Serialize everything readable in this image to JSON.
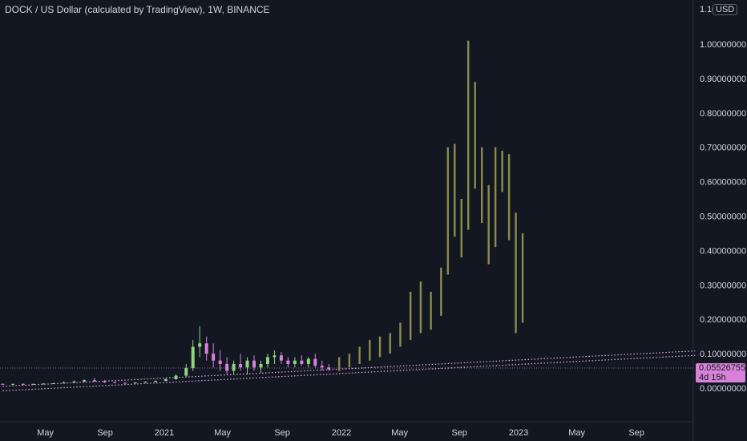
{
  "header": {
    "title": "DOCK / US Dollar (calculated by TradingView), 1W, BINANCE",
    "currency": "USD",
    "top_tick_partial": "1.10"
  },
  "price_tag": {
    "value": "0.05526755",
    "countdown": "4d 15h"
  },
  "colors": {
    "background": "#131722",
    "axis_text": "#d1d4dc",
    "bars_projection": "#8c8c4a",
    "candle_up": "#8fd47a",
    "candle_down": "#d782d8",
    "trendline": "#e4a8e6",
    "price_tag_bg": "#d782d8"
  },
  "chart_data": {
    "type": "candlestick",
    "title": "DOCK / US Dollar (calculated by TradingView), 1W, BINANCE",
    "y_axis": {
      "unit": "USD",
      "ylim": [
        -0.05,
        1.1
      ],
      "ticks": [
        "1.00000000",
        "0.90000000",
        "0.80000000",
        "0.70000000",
        "0.60000000",
        "0.50000000",
        "0.40000000",
        "0.30000000",
        "0.20000000",
        "0.10000000",
        "0.00000000"
      ],
      "tick_values": [
        1.0,
        0.9,
        0.8,
        0.7,
        0.6,
        0.5,
        0.4,
        0.3,
        0.2,
        0.1,
        0.0
      ]
    },
    "x_axis": {
      "ticks": [
        {
          "label": "May",
          "date": "2020-05"
        },
        {
          "label": "Sep",
          "date": "2020-09"
        },
        {
          "label": "2021",
          "date": "2021-01"
        },
        {
          "label": "May",
          "date": "2021-05"
        },
        {
          "label": "Sep",
          "date": "2021-09"
        },
        {
          "label": "2022",
          "date": "2022-01"
        },
        {
          "label": "May",
          "date": "2022-05"
        },
        {
          "label": "Sep",
          "date": "2022-09"
        },
        {
          "label": "2023",
          "date": "2023-01"
        },
        {
          "label": "May",
          "date": "2023-05"
        },
        {
          "label": "Sep",
          "date": "2023-09"
        }
      ]
    },
    "current_price": 0.05526755,
    "projection_bars": [
      {
        "date": "2021-12-27",
        "low": 0.05,
        "high": 0.09
      },
      {
        "date": "2022-01-17",
        "low": 0.06,
        "high": 0.1
      },
      {
        "date": "2022-02-07",
        "low": 0.07,
        "high": 0.12
      },
      {
        "date": "2022-02-28",
        "low": 0.08,
        "high": 0.14
      },
      {
        "date": "2022-03-21",
        "low": 0.09,
        "high": 0.15
      },
      {
        "date": "2022-04-11",
        "low": 0.1,
        "high": 0.16
      },
      {
        "date": "2022-05-02",
        "low": 0.12,
        "high": 0.19
      },
      {
        "date": "2022-05-23",
        "low": 0.14,
        "high": 0.28
      },
      {
        "date": "2022-06-13",
        "low": 0.16,
        "high": 0.31
      },
      {
        "date": "2022-07-04",
        "low": 0.17,
        "high": 0.28
      },
      {
        "date": "2022-07-25",
        "low": 0.21,
        "high": 0.35
      },
      {
        "date": "2022-08-08",
        "low": 0.33,
        "high": 0.7
      },
      {
        "date": "2022-08-22",
        "low": 0.44,
        "high": 0.71
      },
      {
        "date": "2022-09-05",
        "low": 0.38,
        "high": 0.55
      },
      {
        "date": "2022-09-19",
        "low": 0.46,
        "high": 1.01
      },
      {
        "date": "2022-10-03",
        "low": 0.58,
        "high": 0.89
      },
      {
        "date": "2022-10-17",
        "low": 0.48,
        "high": 0.7
      },
      {
        "date": "2022-10-31",
        "low": 0.36,
        "high": 0.59
      },
      {
        "date": "2022-11-14",
        "low": 0.41,
        "high": 0.7
      },
      {
        "date": "2022-11-28",
        "low": 0.57,
        "high": 0.69
      },
      {
        "date": "2022-12-12",
        "low": 0.43,
        "high": 0.68
      },
      {
        "date": "2022-12-26",
        "low": 0.16,
        "high": 0.51
      },
      {
        "date": "2023-01-09",
        "low": 0.19,
        "high": 0.45
      }
    ],
    "candles": [
      {
        "date": "2020-02-03",
        "open": 0.012,
        "high": 0.014,
        "low": 0.01,
        "close": 0.011
      },
      {
        "date": "2020-02-24",
        "open": 0.011,
        "high": 0.013,
        "low": 0.009,
        "close": 0.012
      },
      {
        "date": "2020-03-16",
        "open": 0.012,
        "high": 0.014,
        "low": 0.01,
        "close": 0.011
      },
      {
        "date": "2020-04-06",
        "open": 0.011,
        "high": 0.013,
        "low": 0.01,
        "close": 0.012
      },
      {
        "date": "2020-04-27",
        "open": 0.012,
        "high": 0.014,
        "low": 0.011,
        "close": 0.013
      },
      {
        "date": "2020-05-18",
        "open": 0.013,
        "high": 0.016,
        "low": 0.012,
        "close": 0.014
      },
      {
        "date": "2020-06-08",
        "open": 0.014,
        "high": 0.02,
        "low": 0.013,
        "close": 0.016
      },
      {
        "date": "2020-06-29",
        "open": 0.016,
        "high": 0.022,
        "low": 0.015,
        "close": 0.019
      },
      {
        "date": "2020-07-20",
        "open": 0.019,
        "high": 0.025,
        "low": 0.017,
        "close": 0.023
      },
      {
        "date": "2020-08-10",
        "open": 0.023,
        "high": 0.03,
        "low": 0.018,
        "close": 0.02
      },
      {
        "date": "2020-08-31",
        "open": 0.02,
        "high": 0.023,
        "low": 0.015,
        "close": 0.017
      },
      {
        "date": "2020-09-21",
        "open": 0.017,
        "high": 0.019,
        "low": 0.014,
        "close": 0.015
      },
      {
        "date": "2020-10-12",
        "open": 0.015,
        "high": 0.017,
        "low": 0.013,
        "close": 0.014
      },
      {
        "date": "2020-11-02",
        "open": 0.014,
        "high": 0.017,
        "low": 0.013,
        "close": 0.016
      },
      {
        "date": "2020-11-23",
        "open": 0.016,
        "high": 0.02,
        "low": 0.015,
        "close": 0.018
      },
      {
        "date": "2020-12-14",
        "open": 0.018,
        "high": 0.022,
        "low": 0.017,
        "close": 0.021
      },
      {
        "date": "2021-01-04",
        "open": 0.021,
        "high": 0.028,
        "low": 0.02,
        "close": 0.026
      },
      {
        "date": "2021-01-25",
        "open": 0.026,
        "high": 0.04,
        "low": 0.024,
        "close": 0.036
      },
      {
        "date": "2021-02-15",
        "open": 0.036,
        "high": 0.07,
        "low": 0.033,
        "close": 0.058
      },
      {
        "date": "2021-03-01",
        "open": 0.058,
        "high": 0.14,
        "low": 0.05,
        "close": 0.12
      },
      {
        "date": "2021-03-15",
        "open": 0.12,
        "high": 0.18,
        "low": 0.09,
        "close": 0.13
      },
      {
        "date": "2021-03-29",
        "open": 0.13,
        "high": 0.15,
        "low": 0.08,
        "close": 0.1
      },
      {
        "date": "2021-04-12",
        "open": 0.1,
        "high": 0.13,
        "low": 0.06,
        "close": 0.08
      },
      {
        "date": "2021-04-26",
        "open": 0.08,
        "high": 0.11,
        "low": 0.05,
        "close": 0.07
      },
      {
        "date": "2021-05-10",
        "open": 0.07,
        "high": 0.09,
        "low": 0.04,
        "close": 0.05
      },
      {
        "date": "2021-05-24",
        "open": 0.05,
        "high": 0.08,
        "low": 0.04,
        "close": 0.07
      },
      {
        "date": "2021-06-07",
        "open": 0.07,
        "high": 0.1,
        "low": 0.05,
        "close": 0.06
      },
      {
        "date": "2021-06-21",
        "open": 0.06,
        "high": 0.09,
        "low": 0.04,
        "close": 0.08
      },
      {
        "date": "2021-07-05",
        "open": 0.08,
        "high": 0.095,
        "low": 0.05,
        "close": 0.06
      },
      {
        "date": "2021-07-19",
        "open": 0.06,
        "high": 0.08,
        "low": 0.045,
        "close": 0.07
      },
      {
        "date": "2021-08-02",
        "open": 0.07,
        "high": 0.1,
        "low": 0.06,
        "close": 0.09
      },
      {
        "date": "2021-08-16",
        "open": 0.09,
        "high": 0.11,
        "low": 0.07,
        "close": 0.095
      },
      {
        "date": "2021-08-30",
        "open": 0.095,
        "high": 0.105,
        "low": 0.07,
        "close": 0.08
      },
      {
        "date": "2021-09-13",
        "open": 0.08,
        "high": 0.09,
        "low": 0.06,
        "close": 0.07
      },
      {
        "date": "2021-09-27",
        "open": 0.07,
        "high": 0.09,
        "low": 0.06,
        "close": 0.08
      },
      {
        "date": "2021-10-11",
        "open": 0.08,
        "high": 0.095,
        "low": 0.065,
        "close": 0.07
      },
      {
        "date": "2021-10-25",
        "open": 0.07,
        "high": 0.09,
        "low": 0.06,
        "close": 0.085
      },
      {
        "date": "2021-11-08",
        "open": 0.085,
        "high": 0.1,
        "low": 0.06,
        "close": 0.065
      },
      {
        "date": "2021-11-22",
        "open": 0.065,
        "high": 0.08,
        "low": 0.05,
        "close": 0.06
      },
      {
        "date": "2021-12-06",
        "open": 0.06,
        "high": 0.07,
        "low": 0.05,
        "close": 0.055
      }
    ],
    "trendlines": [
      {
        "style": "dotted",
        "from": {
          "date": "2020-02-03",
          "value": 0.005
        },
        "to": {
          "date": "2023-12-31",
          "value": 0.108
        }
      },
      {
        "style": "dotted",
        "from": {
          "date": "2020-02-03",
          "value": -0.008
        },
        "to": {
          "date": "2023-12-31",
          "value": 0.095
        }
      }
    ]
  }
}
